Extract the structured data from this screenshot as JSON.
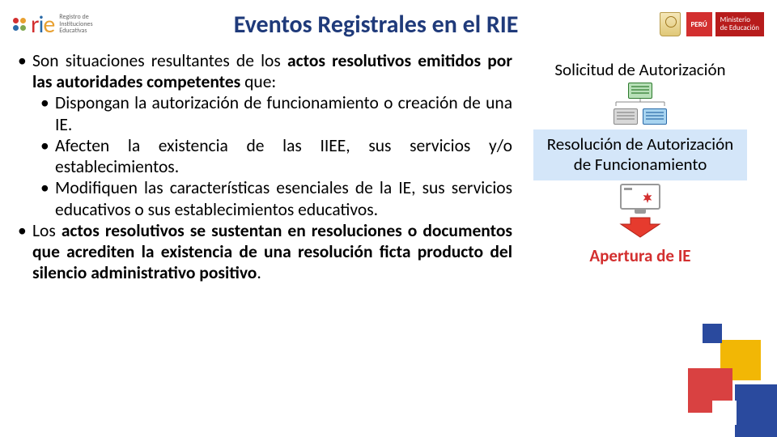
{
  "logo": {
    "rie_letters": [
      {
        "char": "r",
        "color": "#d32f2f"
      },
      {
        "char": "i",
        "color": "#2a6aa8"
      },
      {
        "char": "e",
        "color": "#e8a030"
      }
    ],
    "dots": [
      [
        "#d32f2f",
        "#e8a030"
      ],
      [
        "#2a6aa8",
        "#7fa850"
      ]
    ],
    "subtitle": "Registro de\nInstituciones\nEducativas"
  },
  "title": "Eventos Registrales en el RIE",
  "gov": {
    "peru": "PERÚ",
    "ministry": "Ministerio\nde Educación"
  },
  "bullets": {
    "intro_plain": "Son situaciones resultantes de los ",
    "intro_bold": "actos resolutivos emitidos por las autoridades competentes",
    "intro_tail": " que:",
    "sub1": "Dispongan la autorización de funcionamiento o creación de una IE.",
    "sub2": "Afecten la existencia de las IIEE, sus servicios y/o establecimientos.",
    "sub3": "Modifiquen las características esenciales de la IE, sus servicios educativos o sus establecimientos educativos.",
    "second_plain1": "Los ",
    "second_bold": "actos resolutivos se sustentan en resoluciones o documentos que acrediten la existencia de una resolución ficta producto del silencio administrativo positivo",
    "second_tail": "."
  },
  "flow": {
    "step1": "Solicitud de Autorización",
    "step2": "Resolución de Autorización de Funcionamiento",
    "step3": "Apertura de IE",
    "arrow_color": "#e63b2e",
    "star_color": "#d32f2f"
  },
  "corner_colors": {
    "yellow": "#f2b705",
    "red": "#d94141",
    "blue": "#2a4a9e",
    "white": "#ffffff"
  }
}
